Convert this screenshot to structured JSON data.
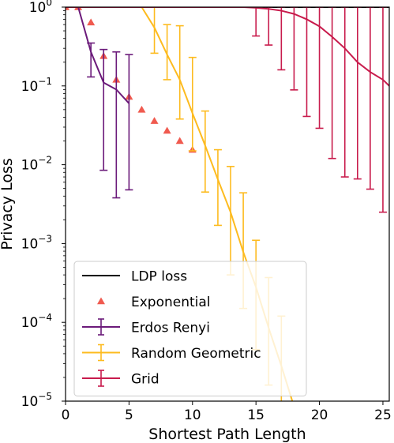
{
  "chart_data": {
    "type": "line",
    "xlabel": "Shortest Path Length",
    "ylabel": "Privacy Loss",
    "xlim": [
      0,
      25.5
    ],
    "ylim": [
      1e-05,
      1
    ],
    "yscale": "log",
    "x_ticks": [
      0,
      5,
      10,
      15,
      20,
      25
    ],
    "x_tick_labels": [
      "0",
      "5",
      "10",
      "15",
      "20",
      "25"
    ],
    "y_ticks": [
      1e-05,
      0.0001,
      0.001,
      0.01,
      0.1,
      1
    ],
    "y_tick_bases": [
      "10",
      "10",
      "10",
      "10",
      "10",
      "10"
    ],
    "y_tick_exponents": [
      "−5",
      "−4",
      "−3",
      "−2",
      "−1",
      "0"
    ],
    "grid": false,
    "legend_position": "lower-left",
    "series": [
      {
        "name": "LDP loss",
        "kind": "line",
        "color": "#000000",
        "x": [
          0,
          25.5
        ],
        "y": [
          1,
          1
        ]
      },
      {
        "name": "Exponential",
        "kind": "markers",
        "marker": "triangle",
        "color": "#f05a4f",
        "x": [
          0,
          1,
          2,
          3,
          4,
          5,
          6,
          7,
          8,
          9,
          10
        ],
        "y": [
          1,
          1,
          0.64,
          0.24,
          0.12,
          0.073,
          0.05,
          0.036,
          0.027,
          0.02,
          0.0155
        ]
      },
      {
        "name": "Erdos Renyi",
        "kind": "errorbar",
        "color": "#6b1a7a",
        "x": [
          0,
          1,
          2,
          3,
          4,
          5
        ],
        "y": [
          1,
          1,
          0.27,
          0.11,
          0.09,
          0.06
        ],
        "ylow": [
          1,
          1,
          0.13,
          0.0085,
          0.0038,
          0.0048
        ],
        "yhigh": [
          1,
          1,
          0.35,
          0.29,
          0.27,
          0.25
        ]
      },
      {
        "name": "Random Geometric",
        "kind": "errorbar",
        "color": "#fdbb1f",
        "x": [
          0,
          1,
          2,
          3,
          4,
          5,
          6,
          7,
          8,
          9,
          10,
          11,
          12,
          13,
          14,
          15,
          16,
          17,
          18
        ],
        "y": [
          1,
          1,
          1,
          1,
          1,
          1,
          1,
          0.55,
          0.25,
          0.12,
          0.045,
          0.0175,
          0.0065,
          0.0025,
          0.00078,
          0.00028,
          8.5e-05,
          2.8e-05,
          8.5e-06
        ],
        "ylow": [
          1,
          1,
          1,
          1,
          1,
          1,
          1,
          0.26,
          0.12,
          0.038,
          0.015,
          0.0045,
          0.0017,
          0.0004,
          0.00015,
          4.5e-05,
          1.6e-05,
          9.8e-06,
          5.8e-06
        ],
        "yhigh": [
          1,
          1,
          1,
          1,
          1,
          1,
          1,
          1,
          0.6,
          0.58,
          0.23,
          0.048,
          0.0155,
          0.0095,
          0.0044,
          0.0011,
          0.00037,
          0.00012,
          9.5e-06
        ]
      },
      {
        "name": "Grid",
        "kind": "errorbar",
        "color": "#c81b4c",
        "x": [
          0,
          1,
          2,
          3,
          4,
          5,
          6,
          7,
          8,
          9,
          10,
          11,
          12,
          13,
          14,
          15,
          16,
          17,
          18,
          19,
          20,
          21,
          22,
          23,
          24,
          25,
          25.5
        ],
        "y": [
          1,
          1,
          1,
          1,
          1,
          1,
          1,
          1,
          1,
          1,
          1,
          1,
          1,
          1,
          1,
          0.98,
          0.95,
          0.9,
          0.82,
          0.7,
          0.57,
          0.42,
          0.3,
          0.2,
          0.15,
          0.12,
          0.1
        ],
        "ylow": [
          null,
          null,
          null,
          null,
          null,
          null,
          null,
          null,
          null,
          null,
          null,
          null,
          null,
          null,
          null,
          0.43,
          0.33,
          0.16,
          0.089,
          0.041,
          0.029,
          0.012,
          0.007,
          0.0066,
          0.0049,
          0.0025,
          null
        ],
        "yhigh": [
          null,
          null,
          null,
          null,
          null,
          null,
          null,
          null,
          null,
          null,
          null,
          null,
          null,
          null,
          null,
          1,
          1,
          1,
          1,
          1,
          1,
          1,
          1,
          1,
          1,
          1,
          null
        ]
      }
    ]
  }
}
